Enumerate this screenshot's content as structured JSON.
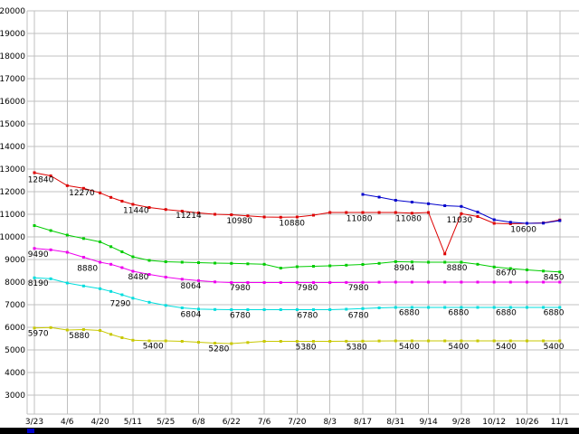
{
  "chart_data": {
    "type": "line",
    "title": "",
    "xlabel": "",
    "ylabel": "",
    "ylim": [
      3000,
      20000
    ],
    "ytick_step": 1000,
    "grid": true,
    "grid_color": "#c0c0c0",
    "background": "#ffffff",
    "legend": "none",
    "categories": [
      "3/23",
      "4/6",
      "4/20",
      "5/11",
      "5/25",
      "6/8",
      "6/22",
      "7/6",
      "7/20",
      "8/3",
      "8/17",
      "8/31",
      "9/14",
      "9/28",
      "10/12",
      "10/26",
      "11/1"
    ],
    "series": [
      {
        "name": "red",
        "color": "#dd0000",
        "points": [
          [
            0,
            12840
          ],
          [
            0.5,
            12700
          ],
          [
            1,
            12270
          ],
          [
            1.5,
            12150
          ],
          [
            2,
            11950
          ],
          [
            2.33,
            11750
          ],
          [
            2.67,
            11580
          ],
          [
            3,
            11440
          ],
          [
            3.5,
            11300
          ],
          [
            4,
            11214
          ],
          [
            4.5,
            11140
          ],
          [
            5,
            11060
          ],
          [
            5.5,
            11000
          ],
          [
            6,
            10980
          ],
          [
            6.5,
            10930
          ],
          [
            7,
            10880
          ],
          [
            7.5,
            10870
          ],
          [
            8,
            10880
          ],
          [
            8.5,
            10960
          ],
          [
            9,
            11080
          ],
          [
            9.5,
            11080
          ],
          [
            10,
            11080
          ],
          [
            10.5,
            11080
          ],
          [
            11,
            11080
          ],
          [
            11.5,
            11050
          ],
          [
            12,
            11080
          ],
          [
            12.5,
            9250
          ],
          [
            13,
            11030
          ],
          [
            13.5,
            10900
          ],
          [
            14,
            10600
          ],
          [
            14.5,
            10580
          ],
          [
            15,
            10600
          ],
          [
            15.5,
            10620
          ],
          [
            16,
            10750
          ]
        ]
      },
      {
        "name": "blue",
        "color": "#0000cc",
        "points": [
          [
            10,
            11880
          ],
          [
            10.5,
            11760
          ],
          [
            11,
            11620
          ],
          [
            11.5,
            11540
          ],
          [
            12,
            11470
          ],
          [
            12.5,
            11380
          ],
          [
            13,
            11350
          ],
          [
            13.5,
            11100
          ],
          [
            14,
            10760
          ],
          [
            14.5,
            10650
          ],
          [
            15,
            10600
          ],
          [
            15.5,
            10610
          ],
          [
            16,
            10720
          ]
        ]
      },
      {
        "name": "green",
        "color": "#00cc00",
        "points": [
          [
            0,
            10500
          ],
          [
            0.5,
            10280
          ],
          [
            1,
            10080
          ],
          [
            1.5,
            9930
          ],
          [
            2,
            9780
          ],
          [
            2.33,
            9570
          ],
          [
            2.67,
            9340
          ],
          [
            3,
            9120
          ],
          [
            3.5,
            8960
          ],
          [
            4,
            8900
          ],
          [
            4.5,
            8880
          ],
          [
            5,
            8860
          ],
          [
            5.5,
            8840
          ],
          [
            6,
            8830
          ],
          [
            6.5,
            8810
          ],
          [
            7,
            8790
          ],
          [
            7.5,
            8620
          ],
          [
            8,
            8680
          ],
          [
            8.5,
            8700
          ],
          [
            9,
            8720
          ],
          [
            9.5,
            8750
          ],
          [
            10,
            8780
          ],
          [
            10.5,
            8830
          ],
          [
            11,
            8904
          ],
          [
            11.5,
            8890
          ],
          [
            12,
            8880
          ],
          [
            12.5,
            8880
          ],
          [
            13,
            8880
          ],
          [
            13.5,
            8790
          ],
          [
            14,
            8670
          ],
          [
            14.5,
            8600
          ],
          [
            15,
            8540
          ],
          [
            15.5,
            8490
          ],
          [
            16,
            8450
          ]
        ]
      },
      {
        "name": "magenta",
        "color": "#ee00ee",
        "points": [
          [
            0,
            9490
          ],
          [
            0.5,
            9430
          ],
          [
            1,
            9320
          ],
          [
            1.5,
            9100
          ],
          [
            2,
            8880
          ],
          [
            2.33,
            8790
          ],
          [
            2.67,
            8640
          ],
          [
            3,
            8480
          ],
          [
            3.5,
            8340
          ],
          [
            4,
            8220
          ],
          [
            4.5,
            8130
          ],
          [
            5,
            8064
          ],
          [
            5.5,
            8010
          ],
          [
            6,
            7980
          ],
          [
            6.5,
            7980
          ],
          [
            7,
            7980
          ],
          [
            7.5,
            7980
          ],
          [
            8,
            7980
          ],
          [
            8.5,
            7980
          ],
          [
            9,
            7980
          ],
          [
            9.5,
            7985
          ],
          [
            10,
            7990
          ],
          [
            10.5,
            7995
          ],
          [
            11,
            8000
          ],
          [
            11.5,
            8000
          ],
          [
            12,
            8000
          ],
          [
            12.5,
            8000
          ],
          [
            13,
            8000
          ],
          [
            13.5,
            8000
          ],
          [
            14,
            8000
          ],
          [
            14.5,
            8000
          ],
          [
            15,
            8000
          ],
          [
            15.5,
            8000
          ],
          [
            16,
            8000
          ]
        ]
      },
      {
        "name": "cyan",
        "color": "#00dddd",
        "points": [
          [
            0,
            8190
          ],
          [
            0.5,
            8150
          ],
          [
            1,
            7960
          ],
          [
            1.5,
            7830
          ],
          [
            2,
            7710
          ],
          [
            2.33,
            7590
          ],
          [
            2.67,
            7440
          ],
          [
            3,
            7290
          ],
          [
            3.5,
            7110
          ],
          [
            4,
            6970
          ],
          [
            4.5,
            6860
          ],
          [
            5,
            6804
          ],
          [
            5.5,
            6790
          ],
          [
            6,
            6780
          ],
          [
            6.5,
            6780
          ],
          [
            7,
            6780
          ],
          [
            7.5,
            6780
          ],
          [
            8,
            6780
          ],
          [
            8.5,
            6780
          ],
          [
            9,
            6780
          ],
          [
            9.5,
            6800
          ],
          [
            10,
            6830
          ],
          [
            10.5,
            6860
          ],
          [
            11,
            6880
          ],
          [
            11.5,
            6880
          ],
          [
            12,
            6880
          ],
          [
            12.5,
            6880
          ],
          [
            13,
            6880
          ],
          [
            13.5,
            6880
          ],
          [
            14,
            6880
          ],
          [
            14.5,
            6880
          ],
          [
            15,
            6880
          ],
          [
            15.5,
            6880
          ],
          [
            16,
            6880
          ]
        ]
      },
      {
        "name": "yellow",
        "color": "#c8c800",
        "points": [
          [
            0,
            5970
          ],
          [
            0.5,
            5990
          ],
          [
            1,
            5880
          ],
          [
            1.5,
            5900
          ],
          [
            2,
            5860
          ],
          [
            2.33,
            5690
          ],
          [
            2.67,
            5540
          ],
          [
            3,
            5430
          ],
          [
            3.5,
            5400
          ],
          [
            4,
            5400
          ],
          [
            4.5,
            5380
          ],
          [
            5,
            5340
          ],
          [
            5.5,
            5300
          ],
          [
            6,
            5280
          ],
          [
            6.5,
            5330
          ],
          [
            7,
            5380
          ],
          [
            7.5,
            5380
          ],
          [
            8,
            5380
          ],
          [
            8.5,
            5380
          ],
          [
            9,
            5380
          ],
          [
            9.5,
            5385
          ],
          [
            10,
            5390
          ],
          [
            10.5,
            5395
          ],
          [
            11,
            5400
          ],
          [
            11.5,
            5400
          ],
          [
            12,
            5400
          ],
          [
            12.5,
            5400
          ],
          [
            13,
            5400
          ],
          [
            13.5,
            5400
          ],
          [
            14,
            5400
          ],
          [
            14.5,
            5400
          ],
          [
            15,
            5400
          ],
          [
            15.5,
            5400
          ],
          [
            16,
            5400
          ]
        ]
      }
    ],
    "annotations": [
      {
        "text": "12840",
        "x": -0.2,
        "v": 12420
      },
      {
        "text": "12270",
        "x": 1.05,
        "v": 11850
      },
      {
        "text": "11440",
        "x": 2.7,
        "v": 11060
      },
      {
        "text": "11214",
        "x": 4.3,
        "v": 10840
      },
      {
        "text": "10980",
        "x": 5.85,
        "v": 10600
      },
      {
        "text": "10880",
        "x": 7.45,
        "v": 10500
      },
      {
        "text": "11080",
        "x": 9.5,
        "v": 10700
      },
      {
        "text": "11080",
        "x": 11.0,
        "v": 10700
      },
      {
        "text": "11030",
        "x": 12.55,
        "v": 10640
      },
      {
        "text": "10600",
        "x": 14.5,
        "v": 10230
      },
      {
        "text": "8904",
        "x": 10.95,
        "v": 8530
      },
      {
        "text": "8880",
        "x": 12.55,
        "v": 8530
      },
      {
        "text": "8670",
        "x": 14.05,
        "v": 8300
      },
      {
        "text": "8450",
        "x": 15.5,
        "v": 8110
      },
      {
        "text": "9490",
        "x": -0.2,
        "v": 9120
      },
      {
        "text": "8880",
        "x": 1.3,
        "v": 8510
      },
      {
        "text": "8480",
        "x": 2.85,
        "v": 8130
      },
      {
        "text": "8064",
        "x": 4.45,
        "v": 7720
      },
      {
        "text": "7980",
        "x": 5.95,
        "v": 7650
      },
      {
        "text": "7980",
        "x": 8.0,
        "v": 7650
      },
      {
        "text": "7980",
        "x": 9.55,
        "v": 7650
      },
      {
        "text": "8190",
        "x": -0.2,
        "v": 7840
      },
      {
        "text": "7290",
        "x": 2.3,
        "v": 6950
      },
      {
        "text": "6804",
        "x": 4.45,
        "v": 6460
      },
      {
        "text": "6780",
        "x": 5.95,
        "v": 6430
      },
      {
        "text": "6780",
        "x": 8.0,
        "v": 6430
      },
      {
        "text": "6780",
        "x": 9.55,
        "v": 6430
      },
      {
        "text": "6880",
        "x": 11.1,
        "v": 6540
      },
      {
        "text": "6880",
        "x": 12.6,
        "v": 6540
      },
      {
        "text": "6880",
        "x": 14.05,
        "v": 6540
      },
      {
        "text": "6880",
        "x": 15.5,
        "v": 6540
      },
      {
        "text": "5970",
        "x": -0.2,
        "v": 5620
      },
      {
        "text": "5880",
        "x": 1.05,
        "v": 5530
      },
      {
        "text": "5400",
        "x": 3.3,
        "v": 5060
      },
      {
        "text": "5280",
        "x": 5.3,
        "v": 4940
      },
      {
        "text": "5380",
        "x": 7.95,
        "v": 5030
      },
      {
        "text": "5380",
        "x": 9.5,
        "v": 5030
      },
      {
        "text": "5400",
        "x": 11.1,
        "v": 5050
      },
      {
        "text": "5400",
        "x": 12.6,
        "v": 5050
      },
      {
        "text": "5400",
        "x": 14.05,
        "v": 5050
      },
      {
        "text": "5400",
        "x": 15.5,
        "v": 5050
      }
    ]
  },
  "bottom_bar": {
    "color": "#000000",
    "accent_color": "#0000cc"
  }
}
